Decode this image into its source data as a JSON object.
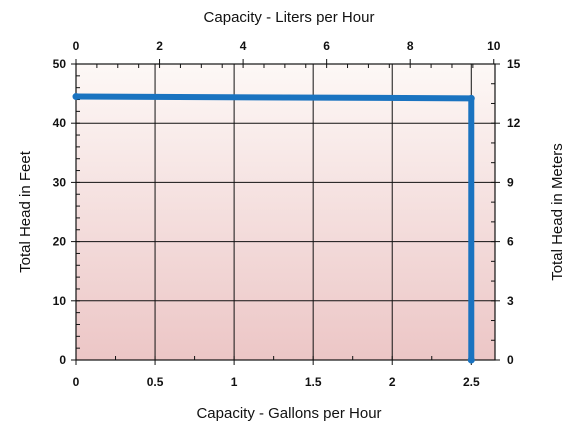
{
  "chart_data": {
    "type": "line",
    "top_axis_title": "Capacity - Liters per Hour",
    "bottom_axis_title": "Capacity - Gallons per Hour",
    "left_axis_title": "Total Head in Feet",
    "right_axis_title": "Total Head in Meters",
    "x_bottom": {
      "ticks": [
        "0",
        "0.5",
        "1",
        "1.5",
        "2",
        "2.5"
      ],
      "values": [
        0,
        0.5,
        1,
        1.5,
        2,
        2.5
      ],
      "range": [
        0,
        2.65
      ]
    },
    "x_top": {
      "ticks": [
        "0",
        "2",
        "4",
        "6",
        "8",
        "10"
      ],
      "values": [
        0,
        2,
        4,
        6,
        8,
        10
      ],
      "range": [
        0,
        10.03
      ]
    },
    "y_left": {
      "ticks": [
        "0",
        "10",
        "20",
        "30",
        "40",
        "50"
      ],
      "values": [
        0,
        10,
        20,
        30,
        40,
        50
      ],
      "range": [
        0,
        50
      ]
    },
    "y_right": {
      "ticks": [
        "0",
        "3",
        "6",
        "9",
        "12",
        "15"
      ],
      "values": [
        0,
        3,
        6,
        9,
        12,
        15
      ],
      "range": [
        0,
        15
      ]
    },
    "grid": true,
    "series": [
      {
        "x": [
          0,
          2.5,
          2.5
        ],
        "y": [
          44.5,
          44.2,
          0
        ]
      }
    ],
    "colors": {
      "line": "#1a73c0",
      "background_top": "#fdf8f6",
      "background_bottom": "#ecc6c6",
      "grid": "#111111"
    }
  }
}
